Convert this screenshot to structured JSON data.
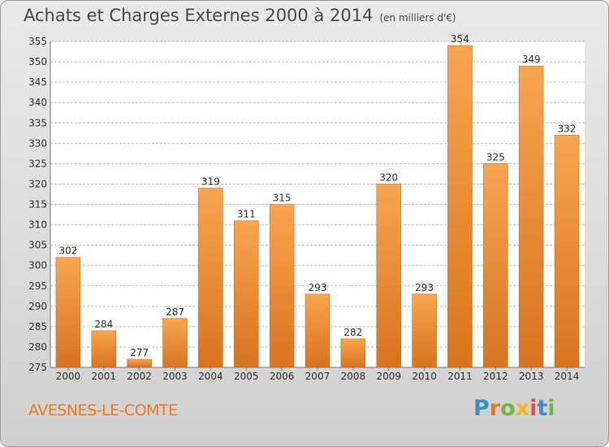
{
  "header": {
    "title": "Achats et Charges Externes 2000 à 2014",
    "subtitle": "(en milliers d'€)"
  },
  "footer": {
    "town": "AVESNES-LE-COMTE",
    "logo": "Proxiti"
  },
  "colors": {
    "bar_light": "#f7a54f",
    "bar_dark": "#d9731e",
    "grid": "#bdbdbd",
    "town_text": "#f07a1a"
  },
  "chart_data": {
    "type": "bar",
    "title": "Achats et Charges Externes 2000 à 2014",
    "subtitle": "(en milliers d'€)",
    "categories": [
      "2000",
      "2001",
      "2002",
      "2003",
      "2004",
      "2005",
      "2006",
      "2007",
      "2008",
      "2009",
      "2010",
      "2011",
      "2012",
      "2013",
      "2014"
    ],
    "values": [
      302,
      284,
      277,
      287,
      319,
      311,
      315,
      293,
      282,
      320,
      293,
      354,
      325,
      349,
      332
    ],
    "ylim": [
      275,
      355
    ],
    "yticks": [
      275,
      280,
      285,
      290,
      295,
      300,
      305,
      310,
      315,
      320,
      325,
      330,
      335,
      340,
      345,
      350,
      355
    ],
    "grid": true,
    "data_labels": true
  }
}
